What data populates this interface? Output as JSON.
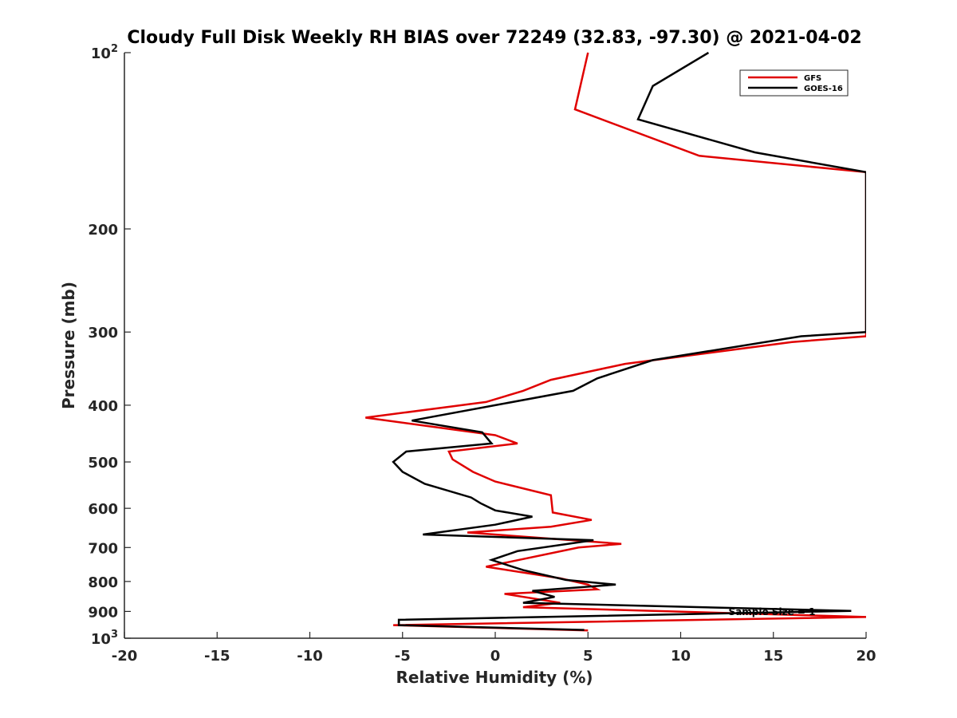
{
  "chart_data": {
    "type": "line",
    "title": "Cloudy Full Disk Weekly RH BIAS over 72249 (32.83, -97.30) @ 2021-04-02",
    "xlabel": "Relative Humidity (%)",
    "ylabel": "Pressure (mb)",
    "xlim": [
      -20,
      20
    ],
    "ylim": [
      100,
      1000
    ],
    "yscale": "log",
    "y_reversed": true,
    "grid": false,
    "legend_position": "top-right",
    "x_ticks": [
      -20,
      -15,
      -10,
      -5,
      0,
      5,
      10,
      15,
      20
    ],
    "x_tick_labels": [
      "-20",
      "-15",
      "-10",
      "-5",
      "0",
      "5",
      "10",
      "15",
      "20"
    ],
    "y_ticks": [
      100,
      200,
      300,
      400,
      500,
      600,
      700,
      800,
      900,
      1000
    ],
    "y_tick_labels": [
      {
        "base": "10",
        "exp": "2"
      },
      {
        "base": "200",
        "exp": ""
      },
      {
        "base": "300",
        "exp": ""
      },
      {
        "base": "400",
        "exp": ""
      },
      {
        "base": "500",
        "exp": ""
      },
      {
        "base": "600",
        "exp": ""
      },
      {
        "base": "700",
        "exp": ""
      },
      {
        "base": "800",
        "exp": ""
      },
      {
        "base": "900",
        "exp": ""
      },
      {
        "base": "10",
        "exp": "3"
      }
    ],
    "annotation": "Sample Size = 1",
    "series": [
      {
        "name": "GFS",
        "color": "#e00000",
        "points": [
          [
            5.0,
            100
          ],
          [
            4.3,
            125
          ],
          [
            11.0,
            150
          ],
          [
            20.0,
            160
          ],
          [
            20.0,
            305
          ],
          [
            16.0,
            312
          ],
          [
            7.0,
            340
          ],
          [
            3.0,
            362
          ],
          [
            1.5,
            378
          ],
          [
            -0.5,
            395
          ],
          [
            -7.0,
            420
          ],
          [
            0.0,
            450
          ],
          [
            1.2,
            465
          ],
          [
            -2.5,
            480
          ],
          [
            -2.3,
            495
          ],
          [
            -1.2,
            520
          ],
          [
            0.0,
            540
          ],
          [
            3.0,
            570
          ],
          [
            3.1,
            610
          ],
          [
            5.2,
            628
          ],
          [
            3.0,
            645
          ],
          [
            -1.5,
            660
          ],
          [
            6.8,
            690
          ],
          [
            4.5,
            700
          ],
          [
            -0.5,
            755
          ],
          [
            3.5,
            790
          ],
          [
            5.0,
            810
          ],
          [
            5.5,
            825
          ],
          [
            0.5,
            840
          ],
          [
            3.5,
            870
          ],
          [
            1.5,
            885
          ],
          [
            20.0,
            920
          ],
          [
            -5.5,
            950
          ],
          [
            5.0,
            970
          ]
        ]
      },
      {
        "name": "GOES-16",
        "color": "#000000",
        "points": [
          [
            11.5,
            100
          ],
          [
            8.5,
            114
          ],
          [
            7.7,
            130
          ],
          [
            14.0,
            148
          ],
          [
            20.0,
            160
          ],
          [
            20.0,
            300
          ],
          [
            16.5,
            305
          ],
          [
            8.5,
            335
          ],
          [
            5.5,
            360
          ],
          [
            4.2,
            378
          ],
          [
            0.0,
            400
          ],
          [
            -4.5,
            425
          ],
          [
            -0.7,
            445
          ],
          [
            -0.2,
            465
          ],
          [
            -4.8,
            480
          ],
          [
            -5.5,
            500
          ],
          [
            -5.0,
            520
          ],
          [
            -3.8,
            545
          ],
          [
            -1.3,
            575
          ],
          [
            -0.8,
            588
          ],
          [
            0.0,
            605
          ],
          [
            2.0,
            620
          ],
          [
            0.0,
            640
          ],
          [
            -3.9,
            665
          ],
          [
            5.3,
            680
          ],
          [
            1.2,
            710
          ],
          [
            -0.2,
            735
          ],
          [
            1.5,
            765
          ],
          [
            3.8,
            795
          ],
          [
            6.5,
            810
          ],
          [
            2.0,
            830
          ],
          [
            3.2,
            850
          ],
          [
            1.5,
            870
          ],
          [
            19.2,
            898
          ],
          [
            -5.2,
            930
          ],
          [
            -5.2,
            950
          ],
          [
            4.8,
            968
          ]
        ]
      }
    ]
  }
}
